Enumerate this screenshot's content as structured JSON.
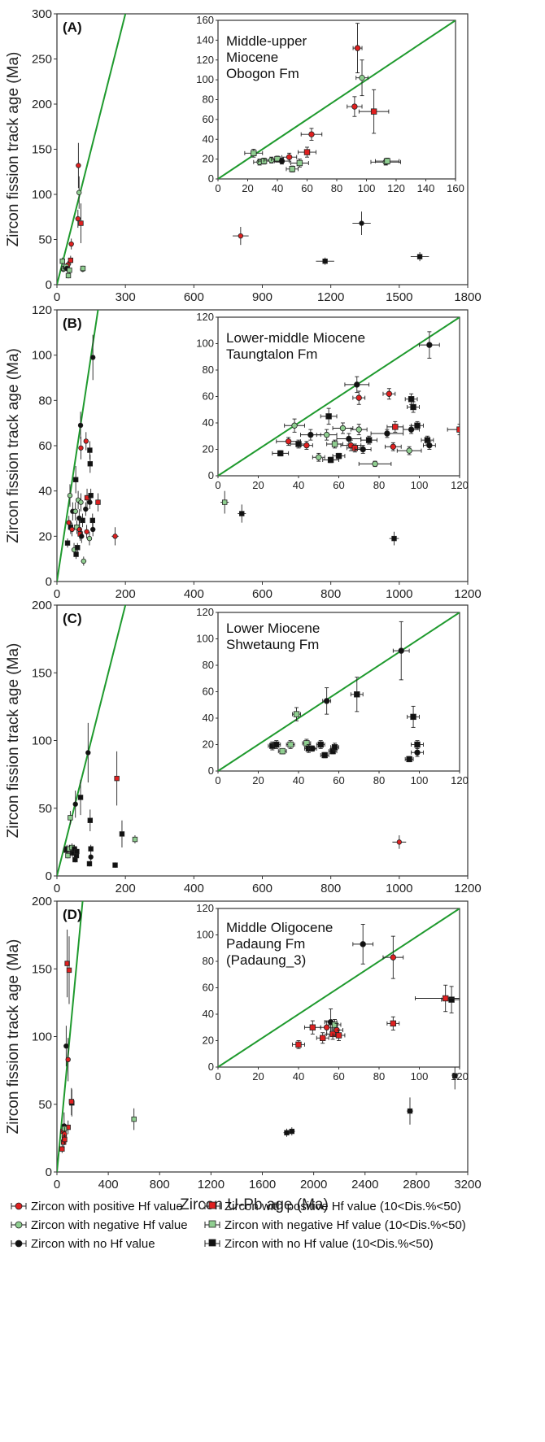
{
  "colors": {
    "positive": "#e02020",
    "negative": "#8fce90",
    "none": "#111111",
    "line": "#1f9a2e",
    "frame": "#333333"
  },
  "legend": [
    {
      "key": "pos",
      "marker": "circle",
      "color": "positive",
      "label": "Zircon with positive Hf value"
    },
    {
      "key": "posd",
      "marker": "square",
      "color": "positive",
      "label": "Zircon with positive Hf value (10<Dis.%<50)"
    },
    {
      "key": "neg",
      "marker": "circle",
      "color": "negative",
      "label": "Zircon with negative Hf value"
    },
    {
      "key": "negd",
      "marker": "square",
      "color": "negative",
      "label": "Zircon with negative Hf value (10<Dis.%<50)"
    },
    {
      "key": "no",
      "marker": "circle",
      "color": "none",
      "label": "Zircon with no Hf value"
    },
    {
      "key": "nod",
      "marker": "square",
      "color": "none",
      "label": "Zircon with no Hf value (10<Dis.%<50)"
    }
  ],
  "chart_data": [
    {
      "type": "scatter",
      "panel_label": "(A)",
      "xlabel": "",
      "ylabel": "Zircon fission track age (Ma)",
      "xlim": [
        0,
        1800
      ],
      "ylim": [
        0,
        300
      ],
      "xticks": [
        "0",
        "300",
        "600",
        "900",
        "1200",
        "1500",
        "1800"
      ],
      "yticks": [
        "0",
        "50",
        "100",
        "150",
        "200",
        "250",
        "300"
      ],
      "inset": {
        "annotation": [
          "Middle-upper",
          "Miocene",
          "Obogon Fm"
        ],
        "xlim": [
          0,
          160
        ],
        "ylim": [
          0,
          160
        ],
        "xticks": [
          "0",
          "20",
          "40",
          "60",
          "80",
          "100",
          "120",
          "140",
          "160"
        ],
        "yticks": [
          "0",
          "20",
          "40",
          "60",
          "80",
          "100",
          "120",
          "140",
          "160"
        ]
      },
      "points": [
        {
          "x": 94,
          "y": 132,
          "s": "pos",
          "ex": 3,
          "ey": 25
        },
        {
          "x": 97,
          "y": 102,
          "s": "neg",
          "ex": 4,
          "ey": 18
        },
        {
          "x": 92,
          "y": 73,
          "s": "pos",
          "ex": 5,
          "ey": 10
        },
        {
          "x": 105,
          "y": 68,
          "s": "posd",
          "ex": 10,
          "ey": 22
        },
        {
          "x": 63,
          "y": 45,
          "s": "pos",
          "ex": 7,
          "ey": 6
        },
        {
          "x": 60,
          "y": 27,
          "s": "posd",
          "ex": 6,
          "ey": 5
        },
        {
          "x": 48,
          "y": 22,
          "s": "pos",
          "ex": 5,
          "ey": 4
        },
        {
          "x": 24,
          "y": 26,
          "s": "negd",
          "ex": 6,
          "ey": 4
        },
        {
          "x": 28,
          "y": 17,
          "s": "neg",
          "ex": 4,
          "ey": 3
        },
        {
          "x": 31,
          "y": 18,
          "s": "negd",
          "ex": 4,
          "ey": 3
        },
        {
          "x": 36,
          "y": 19,
          "s": "neg",
          "ex": 5,
          "ey": 3
        },
        {
          "x": 40,
          "y": 20,
          "s": "negd",
          "ex": 4,
          "ey": 3
        },
        {
          "x": 43,
          "y": 18,
          "s": "no",
          "ex": 5,
          "ey": 3
        },
        {
          "x": 50,
          "y": 10,
          "s": "negd",
          "ex": 4,
          "ey": 3
        },
        {
          "x": 55,
          "y": 16,
          "s": "negd",
          "ex": 6,
          "ey": 4
        },
        {
          "x": 113,
          "y": 17,
          "s": "neg",
          "ex": 10,
          "ey": 3
        },
        {
          "x": 114,
          "y": 18,
          "s": "negd",
          "ex": 8,
          "ey": 3
        },
        {
          "x": 805,
          "y": 54,
          "s": "pos",
          "ex": 35,
          "ey": 10
        },
        {
          "x": 1335,
          "y": 68,
          "s": "no",
          "ex": 40,
          "ey": 13
        },
        {
          "x": 1175,
          "y": 26,
          "s": "nod",
          "ex": 40,
          "ey": 4
        },
        {
          "x": 1590,
          "y": 31,
          "s": "nod",
          "ex": 40,
          "ey": 5
        }
      ]
    },
    {
      "type": "scatter",
      "panel_label": "(B)",
      "xlabel": "",
      "ylabel": "Zircon fission track age (Ma)",
      "xlim": [
        0,
        1200
      ],
      "ylim": [
        0,
        120
      ],
      "xticks": [
        "0",
        "200",
        "400",
        "600",
        "800",
        "1000",
        "1200"
      ],
      "yticks": [
        "0",
        "20",
        "40",
        "60",
        "80",
        "100",
        "120"
      ],
      "inset": {
        "annotation": [
          "Lower-middle Miocene",
          "Taungtalon Fm"
        ],
        "xlim": [
          0,
          120
        ],
        "ylim": [
          0,
          120
        ],
        "xticks": [
          "0",
          "20",
          "40",
          "60",
          "80",
          "100",
          "120"
        ],
        "yticks": [
          "0",
          "20",
          "40",
          "60",
          "80",
          "100",
          "120"
        ]
      },
      "points": [
        {
          "x": 105,
          "y": 99,
          "s": "no",
          "ex": 5,
          "ey": 10
        },
        {
          "x": 69,
          "y": 69,
          "s": "no",
          "ex": 6,
          "ey": 6
        },
        {
          "x": 70,
          "y": 59,
          "s": "pos",
          "ex": 3,
          "ey": 5
        },
        {
          "x": 85,
          "y": 62,
          "s": "pos",
          "ex": 3,
          "ey": 4
        },
        {
          "x": 96,
          "y": 58,
          "s": "nod",
          "ex": 3,
          "ey": 4
        },
        {
          "x": 97,
          "y": 52,
          "s": "nod",
          "ex": 3,
          "ey": 4
        },
        {
          "x": 55,
          "y": 45,
          "s": "nod",
          "ex": 4,
          "ey": 6
        },
        {
          "x": 38,
          "y": 38,
          "s": "neg",
          "ex": 5,
          "ey": 5
        },
        {
          "x": 31,
          "y": 17,
          "s": "nod",
          "ex": 4,
          "ey": 2
        },
        {
          "x": 35,
          "y": 26,
          "s": "pos",
          "ex": 6,
          "ey": 3
        },
        {
          "x": 40,
          "y": 24,
          "s": "nod",
          "ex": 4,
          "ey": 3
        },
        {
          "x": 44,
          "y": 23,
          "s": "pos",
          "ex": 3,
          "ey": 3
        },
        {
          "x": 46,
          "y": 31,
          "s": "no",
          "ex": 5,
          "ey": 4
        },
        {
          "x": 50,
          "y": 14,
          "s": "neg",
          "ex": 3,
          "ey": 3
        },
        {
          "x": 54,
          "y": 31,
          "s": "neg",
          "ex": 5,
          "ey": 4
        },
        {
          "x": 56,
          "y": 12,
          "s": "nod",
          "ex": 4,
          "ey": 2
        },
        {
          "x": 58,
          "y": 24,
          "s": "negd",
          "ex": 4,
          "ey": 3
        },
        {
          "x": 60,
          "y": 15,
          "s": "nod",
          "ex": 3,
          "ey": 2
        },
        {
          "x": 62,
          "y": 36,
          "s": "neg",
          "ex": 5,
          "ey": 4
        },
        {
          "x": 65,
          "y": 28,
          "s": "no",
          "ex": 6,
          "ey": 4
        },
        {
          "x": 66,
          "y": 23,
          "s": "pos",
          "ex": 5,
          "ey": 4
        },
        {
          "x": 68,
          "y": 21,
          "s": "posd",
          "ex": 4,
          "ey": 3
        },
        {
          "x": 70,
          "y": 35,
          "s": "neg",
          "ex": 4,
          "ey": 4
        },
        {
          "x": 72,
          "y": 20,
          "s": "no",
          "ex": 4,
          "ey": 3
        },
        {
          "x": 75,
          "y": 27,
          "s": "nod",
          "ex": 4,
          "ey": 3
        },
        {
          "x": 78,
          "y": 9,
          "s": "neg",
          "ex": 8,
          "ey": 2
        },
        {
          "x": 84,
          "y": 32,
          "s": "no",
          "ex": 8,
          "ey": 3
        },
        {
          "x": 87,
          "y": 22,
          "s": "pos",
          "ex": 4,
          "ey": 3
        },
        {
          "x": 88,
          "y": 37,
          "s": "posd",
          "ex": 4,
          "ey": 4
        },
        {
          "x": 95,
          "y": 19,
          "s": "neg",
          "ex": 6,
          "ey": 3
        },
        {
          "x": 96,
          "y": 35,
          "s": "no",
          "ex": 4,
          "ey": 3
        },
        {
          "x": 99,
          "y": 38,
          "s": "nod",
          "ex": 3,
          "ey": 3
        },
        {
          "x": 104,
          "y": 27,
          "s": "nod",
          "ex": 3,
          "ey": 3
        },
        {
          "x": 105,
          "y": 23,
          "s": "no",
          "ex": 3,
          "ey": 3
        },
        {
          "x": 490,
          "y": 35,
          "s": "negd",
          "ex": 12,
          "ey": 5
        },
        {
          "x": 540,
          "y": 30,
          "s": "nod",
          "ex": 12,
          "ey": 4
        },
        {
          "x": 985,
          "y": 19,
          "s": "nod",
          "ex": 14,
          "ey": 3
        },
        {
          "x": 170,
          "y": 20,
          "s": "pos",
          "ex": 10,
          "ey": 4
        },
        {
          "x": 120,
          "y": 35,
          "s": "posd",
          "ex": 6,
          "ey": 4
        }
      ]
    },
    {
      "type": "scatter",
      "panel_label": "(C)",
      "xlabel": "",
      "ylabel": "Zircon fission track age (Ma)",
      "xlim": [
        0,
        1200
      ],
      "ylim": [
        0,
        200
      ],
      "xticks": [
        "0",
        "200",
        "400",
        "600",
        "800",
        "1000",
        "1200"
      ],
      "yticks": [
        "0",
        "50",
        "100",
        "150",
        "200"
      ],
      "inset": {
        "annotation": [
          "Lower Miocene",
          "Shwetaung Fm"
        ],
        "xlim": [
          0,
          120
        ],
        "ylim": [
          0,
          120
        ],
        "xticks": [
          "0",
          "20",
          "40",
          "60",
          "80",
          "100",
          "120"
        ],
        "yticks": [
          "0",
          "20",
          "40",
          "60",
          "80",
          "100",
          "120"
        ]
      },
      "points": [
        {
          "x": 91,
          "y": 91,
          "s": "no",
          "ex": 4,
          "ey": 22
        },
        {
          "x": 69,
          "y": 58,
          "s": "nod",
          "ex": 3,
          "ey": 13
        },
        {
          "x": 54,
          "y": 53,
          "s": "no",
          "ex": 2,
          "ey": 10
        },
        {
          "x": 39,
          "y": 43,
          "s": "negd",
          "ex": 2,
          "ey": 5
        },
        {
          "x": 97,
          "y": 41,
          "s": "nod",
          "ex": 3,
          "ey": 8
        },
        {
          "x": 27,
          "y": 19,
          "s": "nod",
          "ex": 2,
          "ey": 3
        },
        {
          "x": 29,
          "y": 20,
          "s": "nod",
          "ex": 2,
          "ey": 3
        },
        {
          "x": 32,
          "y": 15,
          "s": "negd",
          "ex": 2,
          "ey": 2
        },
        {
          "x": 36,
          "y": 20,
          "s": "negd",
          "ex": 2,
          "ey": 3
        },
        {
          "x": 44,
          "y": 21,
          "s": "negd",
          "ex": 2,
          "ey": 3
        },
        {
          "x": 45,
          "y": 17,
          "s": "nod",
          "ex": 2,
          "ey": 3
        },
        {
          "x": 47,
          "y": 17,
          "s": "no",
          "ex": 2,
          "ey": 2
        },
        {
          "x": 51,
          "y": 20,
          "s": "nod",
          "ex": 2,
          "ey": 3
        },
        {
          "x": 53,
          "y": 12,
          "s": "nod",
          "ex": 2,
          "ey": 2
        },
        {
          "x": 57,
          "y": 15,
          "s": "nod",
          "ex": 2,
          "ey": 2
        },
        {
          "x": 58,
          "y": 18,
          "s": "nod",
          "ex": 2,
          "ey": 3
        },
        {
          "x": 95,
          "y": 9,
          "s": "nod",
          "ex": 2,
          "ey": 2
        },
        {
          "x": 99,
          "y": 20,
          "s": "nod",
          "ex": 3,
          "ey": 3
        },
        {
          "x": 99,
          "y": 14,
          "s": "no",
          "ex": 3,
          "ey": 3
        },
        {
          "x": 175,
          "y": 72,
          "s": "posd",
          "ex": 4,
          "ey": 20
        },
        {
          "x": 190,
          "y": 31,
          "s": "nod",
          "ex": 4,
          "ey": 10
        },
        {
          "x": 170,
          "y": 8,
          "s": "nod",
          "ex": 4,
          "ey": 2
        },
        {
          "x": 228,
          "y": 27,
          "s": "negd",
          "ex": 5,
          "ey": 3
        },
        {
          "x": 1000,
          "y": 25,
          "s": "pos",
          "ex": 20,
          "ey": 5
        }
      ]
    },
    {
      "type": "scatter",
      "panel_label": "(D)",
      "xlabel": "Zircon U-Pb age (Ma)",
      "ylabel": "Zircon fission track age (Ma)",
      "xlim": [
        0,
        3200
      ],
      "ylim": [
        0,
        200
      ],
      "xticks": [
        "0",
        "400",
        "800",
        "1200",
        "1600",
        "2000",
        "2400",
        "2800",
        "3200"
      ],
      "yticks": [
        "0",
        "50",
        "100",
        "150",
        "200"
      ],
      "inset": {
        "annotation": [
          "Middle Oligocene",
          "Padaung Fm",
          "(Padaung_3)"
        ],
        "xlim": [
          0,
          120
        ],
        "ylim": [
          0,
          120
        ],
        "xticks": [
          "0",
          "20",
          "40",
          "60",
          "80",
          "100",
          "120"
        ],
        "yticks": [
          "0",
          "20",
          "40",
          "60",
          "80",
          "100",
          "120"
        ]
      },
      "points": [
        {
          "x": 72,
          "y": 93,
          "s": "no",
          "ex": 5,
          "ey": 15
        },
        {
          "x": 87,
          "y": 83,
          "s": "pos",
          "ex": 5,
          "ey": 16
        },
        {
          "x": 87,
          "y": 33,
          "s": "posd",
          "ex": 3,
          "ey": 5
        },
        {
          "x": 40,
          "y": 17,
          "s": "posd",
          "ex": 3,
          "ey": 3
        },
        {
          "x": 47,
          "y": 30,
          "s": "posd",
          "ex": 4,
          "ey": 5
        },
        {
          "x": 52,
          "y": 22,
          "s": "posd",
          "ex": 3,
          "ey": 4
        },
        {
          "x": 54,
          "y": 30,
          "s": "pos",
          "ex": 3,
          "ey": 5
        },
        {
          "x": 56,
          "y": 34,
          "s": "no",
          "ex": 3,
          "ey": 10
        },
        {
          "x": 57,
          "y": 25,
          "s": "posd",
          "ex": 3,
          "ey": 4
        },
        {
          "x": 58,
          "y": 32,
          "s": "negd",
          "ex": 3,
          "ey": 4
        },
        {
          "x": 59,
          "y": 28,
          "s": "pos",
          "ex": 3,
          "ey": 5
        },
        {
          "x": 60,
          "y": 24,
          "s": "posd",
          "ex": 3,
          "ey": 4
        },
        {
          "x": 116,
          "y": 51,
          "s": "nod",
          "ex": 5,
          "ey": 10
        },
        {
          "x": 80,
          "y": 154,
          "s": "posd",
          "ex": 15,
          "ey": 25
        },
        {
          "x": 95,
          "y": 149,
          "s": "posd",
          "ex": 15,
          "ey": 25
        },
        {
          "x": 113,
          "y": 52,
          "s": "posd",
          "ex": 15,
          "ey": 10
        },
        {
          "x": 600,
          "y": 39,
          "s": "negd",
          "ex": 15,
          "ey": 8
        },
        {
          "x": 1790,
          "y": 29,
          "s": "nod",
          "ex": 25,
          "ey": 3
        },
        {
          "x": 1830,
          "y": 30,
          "s": "nod",
          "ex": 25,
          "ey": 3
        },
        {
          "x": 2750,
          "y": 45,
          "s": "nod",
          "ex": 25,
          "ey": 10
        },
        {
          "x": 3100,
          "y": 71,
          "s": "nod",
          "ex": 25,
          "ey": 10
        }
      ]
    }
  ]
}
